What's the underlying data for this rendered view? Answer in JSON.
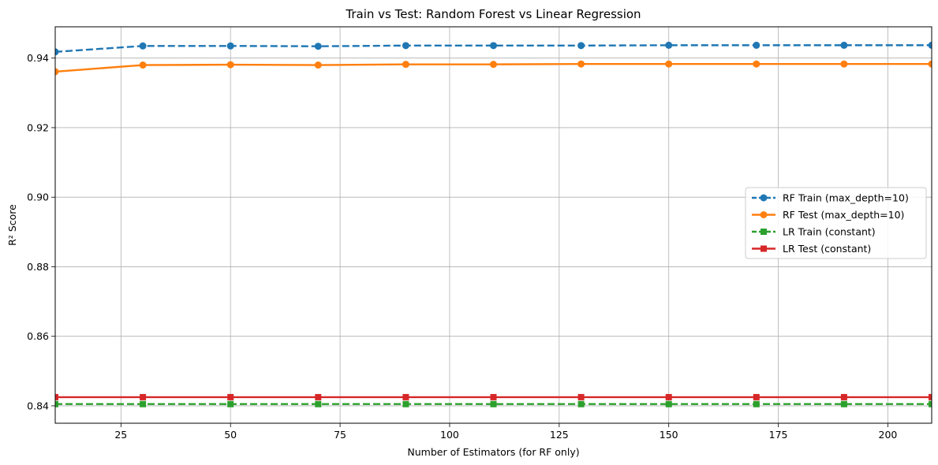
{
  "chart_data": {
    "type": "line",
    "title": "Train vs Test: Random Forest vs Linear Regression",
    "xlabel": "Number of Estimators (for RF only)",
    "ylabel": "R² Score",
    "xlim": [
      10,
      210
    ],
    "ylim": [
      0.835,
      0.949
    ],
    "x_ticks": [
      25,
      50,
      75,
      100,
      125,
      150,
      175,
      200
    ],
    "y_ticks": [
      0.84,
      0.86,
      0.88,
      0.9,
      0.92,
      0.94
    ],
    "y_tick_labels": [
      "0.84",
      "0.86",
      "0.88",
      "0.90",
      "0.92",
      "0.94"
    ],
    "grid": true,
    "legend_position": "center-right",
    "x": [
      10,
      30,
      50,
      70,
      90,
      110,
      130,
      150,
      170,
      190,
      210
    ],
    "series": [
      {
        "name": "RF Train (max_depth=10)",
        "color": "#1f77b4",
        "linestyle": "dashed",
        "marker": "circle",
        "values": [
          0.9418,
          0.9435,
          0.9435,
          0.9434,
          0.9436,
          0.9436,
          0.9436,
          0.9437,
          0.9437,
          0.9437,
          0.9437
        ]
      },
      {
        "name": "RF Test (max_depth=10)",
        "color": "#ff7f0e",
        "linestyle": "solid",
        "marker": "circle",
        "values": [
          0.9361,
          0.938,
          0.9381,
          0.938,
          0.9382,
          0.9382,
          0.9383,
          0.9383,
          0.9383,
          0.9383,
          0.9383
        ]
      },
      {
        "name": "LR Train (constant)",
        "color": "#2ca02c",
        "linestyle": "dashed",
        "marker": "square",
        "values": [
          0.8405,
          0.8405,
          0.8405,
          0.8405,
          0.8405,
          0.8405,
          0.8405,
          0.8405,
          0.8405,
          0.8405,
          0.8405
        ]
      },
      {
        "name": "LR Test (constant)",
        "color": "#d62728",
        "linestyle": "solid",
        "marker": "square",
        "values": [
          0.8425,
          0.8425,
          0.8425,
          0.8425,
          0.8425,
          0.8425,
          0.8425,
          0.8425,
          0.8425,
          0.8425,
          0.8425
        ]
      }
    ]
  }
}
